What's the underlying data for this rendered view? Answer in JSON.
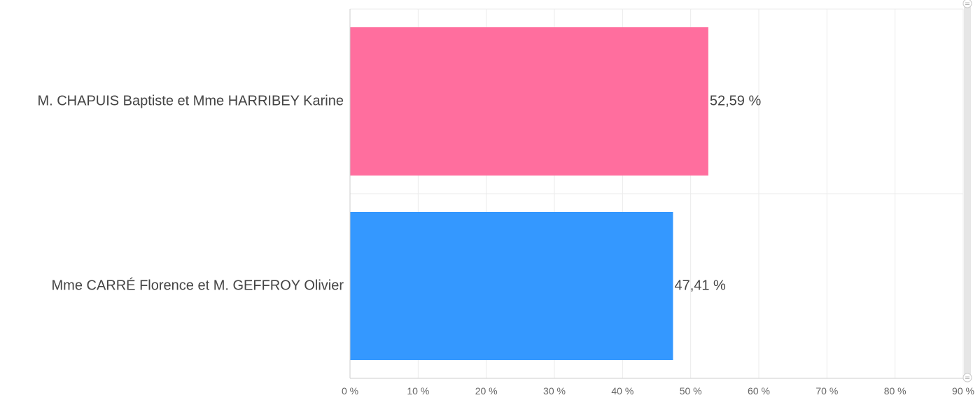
{
  "chart_data": {
    "type": "bar",
    "orientation": "horizontal",
    "categories": [
      "M. CHAPUIS Baptiste et Mme HARRIBEY Karine",
      "Mme CARRÉ Florence et M. GEFFROY Olivier"
    ],
    "values": [
      52.59,
      47.41
    ],
    "data_labels": [
      "52,59 %",
      "47,41 %"
    ],
    "colors": [
      "#ff6e9e",
      "#3498ff"
    ],
    "xlim": [
      0,
      90
    ],
    "x_ticks": [
      0,
      10,
      20,
      30,
      40,
      50,
      60,
      70,
      80,
      90
    ],
    "x_tick_labels": [
      "0 %",
      "10 %",
      "20 %",
      "30 %",
      "40 %",
      "50 %",
      "60 %",
      "70 %",
      "80 %",
      "90 %"
    ],
    "title": "",
    "xlabel": "",
    "ylabel": "",
    "grid": true,
    "gridline_color": "#ebebeb",
    "axis_color": "#cccccc"
  }
}
